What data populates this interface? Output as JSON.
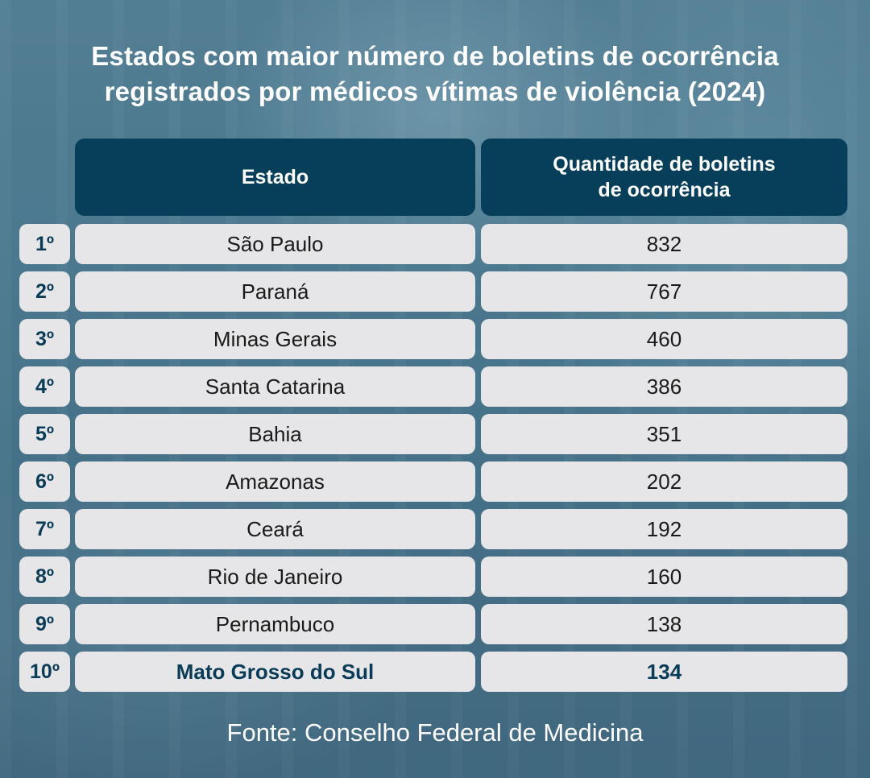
{
  "title": {
    "line1": "Estados com maior número de boletins de ocorrência",
    "line2": "registrados por médicos vítimas de violência (2024)"
  },
  "headers": {
    "state": "Estado",
    "count_line1": "Quantidade de boletins",
    "count_line2": "de ocorrência"
  },
  "chart_data": {
    "type": "table",
    "title": "Estados com maior número de boletins de ocorrência registrados por médicos vítimas de violência (2024)",
    "columns": [
      "Estado",
      "Quantidade de boletins de ocorrência"
    ],
    "rows": [
      {
        "rank": "1º",
        "state": "São Paulo",
        "count": "832"
      },
      {
        "rank": "2º",
        "state": "Paraná",
        "count": "767"
      },
      {
        "rank": "3º",
        "state": "Minas Gerais",
        "count": "460"
      },
      {
        "rank": "4º",
        "state": "Santa Catarina",
        "count": "386"
      },
      {
        "rank": "5º",
        "state": "Bahia",
        "count": "351"
      },
      {
        "rank": "6º",
        "state": "Amazonas",
        "count": "202"
      },
      {
        "rank": "7º",
        "state": "Ceará",
        "count": "192"
      },
      {
        "rank": "8º",
        "state": "Rio de Janeiro",
        "count": "160"
      },
      {
        "rank": "9º",
        "state": "Pernambuco",
        "count": "138"
      },
      {
        "rank": "10º",
        "state": "Mato Grosso do Sul",
        "count": "134",
        "highlight": true
      }
    ]
  },
  "colors": {
    "header_bg": "#073e5a",
    "cell_bg": "#e6e6e8",
    "highlight_text": "#0a3c57"
  },
  "source": "Fonte: Conselho Federal de Medicina"
}
